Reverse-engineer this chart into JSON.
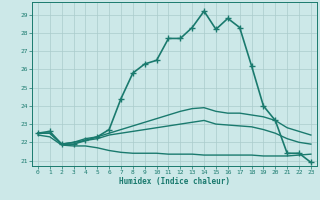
{
  "xlabel": "Humidex (Indice chaleur)",
  "background_color": "#cce8e8",
  "grid_color": "#aacccc",
  "line_color": "#1a7a6e",
  "xlim": [
    -0.5,
    23.5
  ],
  "ylim": [
    20.7,
    29.7
  ],
  "yticks": [
    21,
    22,
    23,
    24,
    25,
    26,
    27,
    28,
    29
  ],
  "xticks": [
    0,
    1,
    2,
    3,
    4,
    5,
    6,
    7,
    8,
    9,
    10,
    11,
    12,
    13,
    14,
    15,
    16,
    17,
    18,
    19,
    20,
    21,
    22,
    23
  ],
  "series": [
    {
      "x": [
        0,
        1,
        2,
        3,
        4,
        5,
        6,
        7,
        8,
        9,
        10,
        11,
        12,
        13,
        14,
        15,
        16,
        17,
        18,
        19,
        20,
        21,
        22,
        23
      ],
      "y": [
        22.5,
        22.6,
        21.9,
        21.9,
        22.1,
        22.3,
        22.7,
        24.4,
        25.8,
        26.3,
        26.5,
        27.7,
        27.7,
        28.3,
        29.2,
        28.2,
        28.8,
        28.3,
        26.2,
        24.0,
        23.2,
        21.4,
        21.4,
        20.9
      ],
      "marker": "+",
      "markersize": 4,
      "linewidth": 1.2
    },
    {
      "x": [
        0,
        1,
        2,
        3,
        4,
        5,
        6,
        7,
        8,
        9,
        10,
        11,
        12,
        13,
        14,
        15,
        16,
        17,
        18,
        19,
        20,
        21,
        22,
        23
      ],
      "y": [
        22.5,
        22.5,
        21.9,
        22.0,
        22.2,
        22.3,
        22.5,
        22.7,
        22.9,
        23.1,
        23.3,
        23.5,
        23.7,
        23.85,
        23.9,
        23.7,
        23.6,
        23.6,
        23.5,
        23.4,
        23.2,
        22.8,
        22.6,
        22.4
      ],
      "marker": null,
      "markersize": 0,
      "linewidth": 1.0
    },
    {
      "x": [
        0,
        1,
        2,
        3,
        4,
        5,
        6,
        7,
        8,
        9,
        10,
        11,
        12,
        13,
        14,
        15,
        16,
        17,
        18,
        19,
        20,
        21,
        22,
        23
      ],
      "y": [
        22.5,
        22.5,
        21.9,
        22.0,
        22.1,
        22.2,
        22.4,
        22.5,
        22.6,
        22.7,
        22.8,
        22.9,
        23.0,
        23.1,
        23.2,
        23.0,
        22.95,
        22.9,
        22.85,
        22.7,
        22.5,
        22.2,
        22.0,
        21.9
      ],
      "marker": null,
      "markersize": 0,
      "linewidth": 1.0
    },
    {
      "x": [
        0,
        1,
        2,
        3,
        4,
        5,
        6,
        7,
        8,
        9,
        10,
        11,
        12,
        13,
        14,
        15,
        16,
        17,
        18,
        19,
        20,
        21,
        22,
        23
      ],
      "y": [
        22.4,
        22.3,
        21.85,
        21.8,
        21.8,
        21.7,
        21.55,
        21.45,
        21.4,
        21.4,
        21.4,
        21.35,
        21.35,
        21.35,
        21.3,
        21.3,
        21.3,
        21.3,
        21.3,
        21.25,
        21.25,
        21.25,
        21.3,
        21.35
      ],
      "marker": null,
      "markersize": 0,
      "linewidth": 1.0
    }
  ]
}
